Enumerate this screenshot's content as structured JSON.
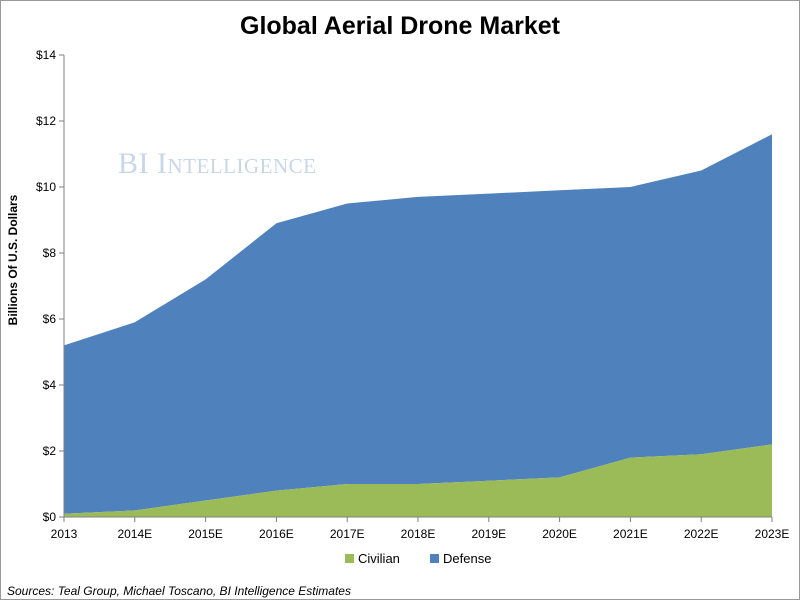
{
  "chart_data": {
    "type": "area",
    "stacked": true,
    "title": "Global Aerial Drone Market",
    "ylabel": "Billions Of U.S. Dollars",
    "xlabel": "",
    "ylim": [
      0,
      14
    ],
    "yticks": [
      0,
      2,
      4,
      6,
      8,
      10,
      12,
      14
    ],
    "ytick_labels": [
      "$0",
      "$2",
      "$4",
      "$6",
      "$8",
      "$10",
      "$12",
      "$14"
    ],
    "categories": [
      "2013",
      "2014E",
      "2015E",
      "2016E",
      "2017E",
      "2018E",
      "2019E",
      "2020E",
      "2021E",
      "2022E",
      "2023E"
    ],
    "series": [
      {
        "name": "Civilian",
        "color": "#9bbb59",
        "values": [
          0.1,
          0.2,
          0.5,
          0.8,
          1.0,
          1.0,
          1.1,
          1.2,
          1.8,
          1.9,
          2.2
        ]
      },
      {
        "name": "Defense",
        "color": "#4f81bd",
        "values": [
          5.1,
          5.7,
          6.7,
          8.1,
          8.5,
          8.7,
          8.7,
          8.7,
          8.2,
          8.6,
          9.4
        ]
      }
    ],
    "grid": false,
    "legend_position": "bottom"
  },
  "watermark": "BI Intelligence",
  "source": "Sources: Teal Group, Michael Toscano, BI Intelligence Estimates"
}
